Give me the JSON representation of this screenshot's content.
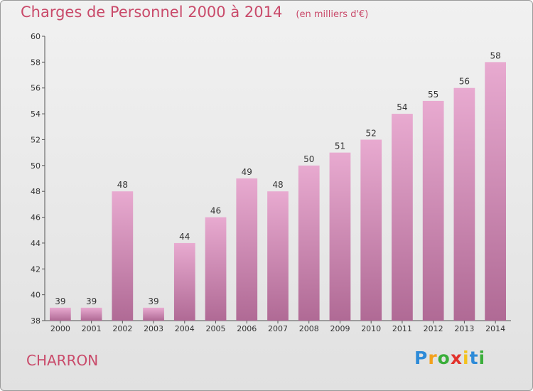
{
  "header": {
    "title": "Charges de Personnel 2000 à 2014",
    "unit": "(en milliers d'€)"
  },
  "footer": {
    "city": "CHARRON",
    "logo_letters": [
      "P",
      "r",
      "o",
      "x",
      "i",
      "t",
      "i"
    ],
    "logo_colors": [
      "#2e8bd8",
      "#f3a11d",
      "#3aae3a",
      "#e2322c",
      "#f3c21d",
      "#2e8bd8",
      "#3aae3a"
    ]
  },
  "colors": {
    "title": "#c94a6a",
    "bar_top": "#e8aad0",
    "bar_bottom": "#b06a95"
  },
  "chart_data": {
    "type": "bar",
    "title": "Charges de Personnel 2000 à 2014",
    "categories": [
      "2000",
      "2001",
      "2002",
      "2003",
      "2004",
      "2005",
      "2006",
      "2007",
      "2008",
      "2009",
      "2010",
      "2011",
      "2012",
      "2013",
      "2014"
    ],
    "values": [
      39,
      39,
      48,
      39,
      44,
      46,
      49,
      48,
      50,
      51,
      52,
      54,
      55,
      56,
      58
    ],
    "ylim": [
      38,
      60
    ],
    "yticks": [
      38,
      40,
      42,
      44,
      46,
      48,
      50,
      52,
      54,
      56,
      58,
      60
    ],
    "grid": false,
    "xlabel": "",
    "ylabel": ""
  }
}
